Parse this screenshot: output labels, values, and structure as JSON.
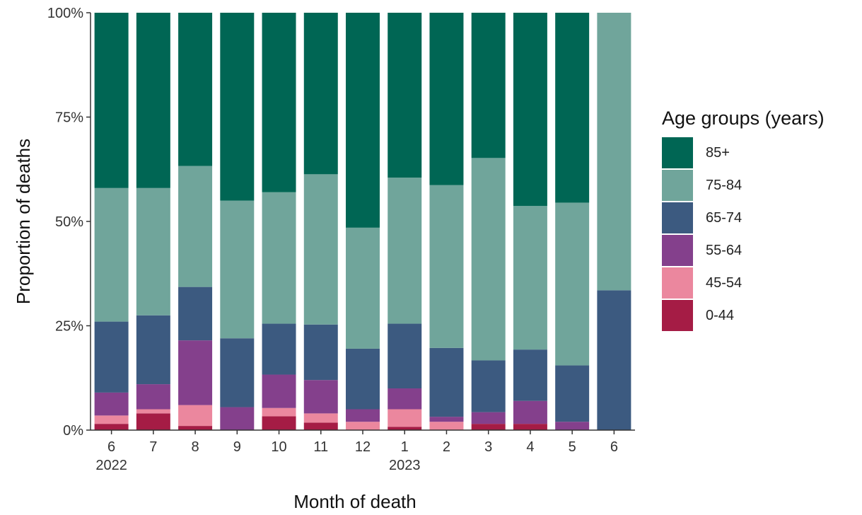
{
  "chart_data": {
    "type": "bar",
    "stacked": true,
    "normalized": true,
    "xlabel": "Month of death",
    "ylabel": "Proportion of deaths",
    "ylim": [
      0,
      100
    ],
    "y_ticks": [
      "0%",
      "25%",
      "50%",
      "75%",
      "100%"
    ],
    "categories": [
      "6",
      "7",
      "8",
      "9",
      "10",
      "11",
      "12",
      "1",
      "2",
      "3",
      "4",
      "5",
      "6"
    ],
    "year_labels": [
      {
        "index": 0,
        "label": "2022"
      },
      {
        "index": 7,
        "label": "2023"
      }
    ],
    "legend_title": "Age groups (years)",
    "legend_position": "right",
    "legend_order": [
      "85+",
      "75-84",
      "65-74",
      "55-64",
      "45-54",
      "0-44"
    ],
    "series": [
      {
        "name": "0-44",
        "color": "#a51c45",
        "values": [
          1.5,
          4.0,
          1.0,
          0.0,
          3.3,
          1.8,
          0.0,
          0.8,
          0.0,
          1.5,
          1.5,
          0.0,
          0.0
        ]
      },
      {
        "name": "45-54",
        "color": "#eb879e",
        "values": [
          2.0,
          1.0,
          5.0,
          0.0,
          2.0,
          2.2,
          2.0,
          4.2,
          2.0,
          0.0,
          0.0,
          0.0,
          0.0
        ]
      },
      {
        "name": "55-64",
        "color": "#84408c",
        "values": [
          5.5,
          6.0,
          15.5,
          5.5,
          8.0,
          8.0,
          3.0,
          5.0,
          1.2,
          2.8,
          5.5,
          2.0,
          0.0
        ]
      },
      {
        "name": "65-74",
        "color": "#3c5a80",
        "values": [
          17.0,
          16.5,
          12.8,
          16.5,
          12.2,
          13.3,
          14.5,
          15.5,
          16.5,
          12.4,
          12.3,
          13.5,
          33.5
        ]
      },
      {
        "name": "75-84",
        "color": "#70a59b",
        "values": [
          32.0,
          30.5,
          29.0,
          33.0,
          31.5,
          36.0,
          29.0,
          35.0,
          39.0,
          48.5,
          34.4,
          39.0,
          66.5
        ]
      },
      {
        "name": "85+",
        "color": "#006654",
        "values": [
          42.0,
          42.0,
          36.7,
          45.0,
          43.0,
          38.7,
          51.5,
          39.5,
          41.3,
          34.8,
          46.3,
          45.5,
          0.0
        ]
      }
    ],
    "grid": false
  }
}
